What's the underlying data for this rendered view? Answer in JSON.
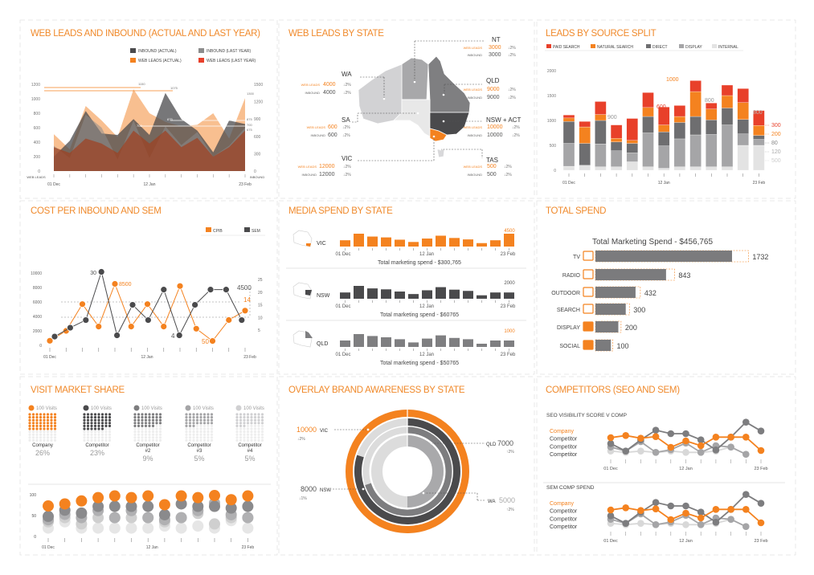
{
  "colors": {
    "orange": "#f4821f",
    "red": "#e8402a",
    "dark": "#4a4a4c",
    "mid": "#7d7d7f",
    "gray": "#a5a5a7",
    "light": "#d5d5d7",
    "lighter": "#ebebeb"
  },
  "panel_titles": [
    "WEB LEADS AND INBOUND (ACTUAL AND LAST YEAR)",
    "WEB LEADS BY STATE",
    "LEADS BY SOURCE SPLIT",
    "COST PER INBOUND AND SEM",
    "MEDIA SPEND BY STATE",
    "TOTAL SPEND",
    "VISIT MARKET SHARE",
    "OVERLAY BRAND AWARENESS BY STATE",
    "COMPETITORS (SEO AND SEM)"
  ],
  "chart_data": [
    {
      "type": "area",
      "title": "WEB LEADS AND INBOUND (ACTUAL AND LAST YEAR)",
      "x_labels": [
        "01 Dec",
        "12 Jan",
        "23 Feb"
      ],
      "ylabel_left": "WEB LEADS",
      "ylabel_right": "INBOUND",
      "yticks_left": [
        0,
        200,
        400,
        600,
        800,
        1000,
        1200
      ],
      "yticks_right": [
        0,
        300,
        600,
        900,
        1200,
        1500
      ],
      "ylim": [
        0,
        1200
      ],
      "series": [
        {
          "name": "WEB LEADS (ACTUAL)",
          "color": "#f5a96b",
          "values": [
            510,
            300,
            900,
            700,
            470,
            1130,
            800,
            680,
            620,
            640,
            800,
            450,
            1010
          ]
        },
        {
          "name": "INBOUND (ACTUAL)",
          "color": "#4a4a4c",
          "values": [
            200,
            420,
            830,
            520,
            500,
            720,
            500,
            1080,
            720,
            560,
            260,
            700,
            650
          ]
        },
        {
          "name": "INBOUND (LAST YEAR)",
          "color": "#8c8c8c",
          "values": [
            350,
            180,
            780,
            600,
            160,
            700,
            180,
            620,
            360,
            540,
            200,
            350,
            600
          ]
        },
        {
          "name": "WEB LEADS (LAST YEAR)",
          "color": "#a0401f",
          "values": [
            330,
            250,
            450,
            380,
            250,
            560,
            380,
            560,
            330,
            460,
            200,
            330,
            560
          ]
        }
      ],
      "legend_order": [
        "INBOUND (ACTUAL)",
        "INBOUND (LAST YEAR)",
        "WEB LEADS (ACTUAL)",
        "WEB LEADS (LAST YEAR)"
      ],
      "legend_colors": [
        "#4a4a4c",
        "#8c8c8c",
        "#f4821f",
        "#e8402a"
      ],
      "annotations": [
        "1150",
        "1075",
        "700",
        "875",
        "1300",
        "875",
        "700",
        "675"
      ]
    },
    {
      "type": "map",
      "title": "WEB LEADS BY STATE",
      "row_labels": [
        "WEB LEADS",
        "INBOUND"
      ],
      "states": [
        {
          "name": "NT",
          "web_leads": "3000",
          "inbound": "3000",
          "web_change": "↓2%",
          "inbound_change": "↓2%",
          "color": "#a8a8aa"
        },
        {
          "name": "WA",
          "web_leads": "4000",
          "inbound": "4000",
          "web_change": "↓2%",
          "inbound_change": "↓2%",
          "color": "#d2d2d4"
        },
        {
          "name": "QLD",
          "web_leads": "9000",
          "inbound": "9000",
          "web_change": "↓2%",
          "inbound_change": "↓2%",
          "color": "#7f7f81"
        },
        {
          "name": "SA",
          "web_leads": "600",
          "inbound": "600",
          "web_change": "↓2%",
          "inbound_change": "↓2%",
          "color": "#e8e8e8"
        },
        {
          "name": "NSW + ACT",
          "web_leads": "10000",
          "inbound": "10000",
          "web_change": "↓2%",
          "inbound_change": "↓2%",
          "color": "#4a4a4c"
        },
        {
          "name": "VIC",
          "web_leads": "12000",
          "inbound": "12000",
          "web_change": "↓2%",
          "inbound_change": "↓2%",
          "color": "#f4821f"
        },
        {
          "name": "TAS",
          "web_leads": "500",
          "inbound": "500",
          "web_change": "↓2%",
          "inbound_change": "↓2%",
          "color": "#d8d8da"
        }
      ]
    },
    {
      "type": "bar",
      "stacked": true,
      "title": "LEADS BY SOURCE SPLIT",
      "x_labels": [
        "01 Dec",
        "12 Jan",
        "23 Feb"
      ],
      "yticks": [
        0,
        500,
        1000,
        1500,
        2000
      ],
      "ylim": [
        0,
        2000
      ],
      "series": [
        {
          "name": "INTERNAL",
          "color": "#e3e3e3",
          "values": [
            80,
            100,
            70,
            70,
            170,
            70,
            40,
            70,
            70,
            70,
            70,
            500,
            500
          ]
        },
        {
          "name": "DISPLAY",
          "color": "#a5a5a7",
          "values": [
            460,
            0,
            460,
            320,
            180,
            680,
            450,
            560,
            640,
            650,
            840,
            230,
            120
          ]
        },
        {
          "name": "DIRECT",
          "color": "#6e6e70",
          "values": [
            440,
            440,
            470,
            180,
            190,
            330,
            280,
            330,
            370,
            290,
            340,
            290,
            80
          ]
        },
        {
          "name": "NATURAL SEARCH",
          "color": "#f4821f",
          "values": [
            70,
            330,
            120,
            70,
            60,
            180,
            140,
            120,
            500,
            220,
            250,
            340,
            200
          ]
        },
        {
          "name": "PAID SEARCH",
          "color": "#e8402a",
          "values": [
            60,
            110,
            260,
            270,
            440,
            300,
            360,
            220,
            220,
            120,
            210,
            280,
            300
          ]
        }
      ],
      "legend_order": [
        "PAID SEARCH",
        "NATURAL SEARCH",
        "DIRECT",
        "DISPLAY",
        "INTERNAL"
      ],
      "annotations": [
        "900",
        "600",
        "1000",
        "800",
        "800",
        "300",
        "200",
        "80",
        "120",
        "500"
      ]
    },
    {
      "type": "line",
      "title": "COST PER INBOUND AND SEM",
      "x_labels": [
        "01 Dec",
        "12 Jan",
        "23 Feb"
      ],
      "yticks_left": [
        0,
        2000,
        4000,
        6000,
        8000,
        10000
      ],
      "yticks_right": [
        5,
        10,
        15,
        20,
        25
      ],
      "series": [
        {
          "name": "CPIB",
          "axis": "left",
          "color": "#f4821f",
          "values": [
            630,
            2000,
            5700,
            2600,
            8500,
            2600,
            5700,
            2600,
            8200,
            2300,
            600,
            3500,
            4800
          ]
        },
        {
          "name": "SEM",
          "axis": "right",
          "color": "#4a4a4c",
          "values": [
            2.5,
            6,
            9,
            28,
            3,
            15,
            9,
            21,
            3,
            15,
            21,
            21,
            9
          ]
        }
      ],
      "annotations": [
        "30",
        "8500",
        "4",
        "50",
        "4500",
        "14"
      ]
    },
    {
      "type": "bar",
      "title": "MEDIA SPEND BY STATE",
      "x_labels": [
        "01 Dec",
        "12 Jan",
        "23 Feb"
      ],
      "charts": [
        {
          "state": "VIC",
          "color": "#f4821f",
          "label_color": "#f4821f",
          "last_label": "4500",
          "total": "Total marketing spend - $300,765",
          "values": [
            2200,
            4500,
            3500,
            3200,
            2400,
            1600,
            2800,
            3800,
            3000,
            2500,
            1200,
            2200,
            4500
          ]
        },
        {
          "state": "NSW",
          "color": "#4a4a4c",
          "label_color": "#555555",
          "last_label": "2000",
          "total": "Total marketing spend - $60765",
          "values": [
            2000,
            4100,
            3300,
            3000,
            2300,
            1500,
            2700,
            3700,
            2900,
            2500,
            1100,
            2000,
            2000
          ]
        },
        {
          "state": "QLD",
          "color": "#7f7f81",
          "label_color": "#f4821f",
          "last_label": "1000",
          "total": "Total marketing spend - $50765",
          "values": [
            1000,
            2000,
            1700,
            1500,
            1200,
            700,
            1300,
            1800,
            1400,
            1200,
            500,
            1000,
            1000
          ]
        }
      ]
    },
    {
      "type": "bar",
      "orientation": "horizontal",
      "title": "Total Marketing Spend - $456,765",
      "categories": [
        "TV",
        "RADIO",
        "OUTDOOR",
        "SEARCH",
        "DISPLAY",
        "SOCIAL"
      ],
      "icons": [
        "tv-icon",
        "radio-icon",
        "billboard-icon",
        "search-icon",
        "display-icon",
        "social-icon"
      ],
      "values": [
        1732,
        843,
        432,
        300,
        200,
        100
      ]
    },
    {
      "type": "waffle",
      "title": "VISIT MARKET SHARE",
      "unit_label": "100 Visits",
      "items": [
        {
          "name": "Company",
          "pct": "26%",
          "color": "#f4821f",
          "fill_dots": 48
        },
        {
          "name": "Competitor",
          "pct": "23%",
          "color": "#4a4a4c",
          "fill_dots": 46
        },
        {
          "name": "Competitor\n#2",
          "pct": "9%",
          "color": "#7d7d7f",
          "fill_dots": 38
        },
        {
          "name": "Competitor\n#3",
          "pct": "5%",
          "color": "#a5a5a7",
          "fill_dots": 35
        },
        {
          "name": "Competitor\n#4",
          "pct": "5%",
          "color": "#d0d0d2",
          "fill_dots": 35
        }
      ]
    },
    {
      "type": "scatter",
      "title": "VISIT MARKET SHARE (trend)",
      "x_labels": [
        "01 Dec",
        "12 Jan",
        "23 Feb"
      ],
      "yticks": [
        0,
        50,
        100
      ],
      "ylim": [
        0,
        100
      ],
      "series": [
        {
          "name": "Competitor #4",
          "color": "#e6e6e6",
          "values": [
            20,
            35,
            20,
            20,
            20,
            20,
            20,
            25,
            20,
            25,
            20,
            38,
            20
          ]
        },
        {
          "name": "Competitor #3",
          "color": "#cfcfcf",
          "values": [
            35,
            45,
            30,
            45,
            45,
            45,
            45,
            35,
            45,
            55,
            30,
            45,
            45
          ]
        },
        {
          "name": "Competitor #2",
          "color": "#b0b0b2",
          "values": [
            40,
            53,
            45,
            62,
            45,
            62,
            45,
            40,
            45,
            62,
            80,
            52,
            45
          ]
        },
        {
          "name": "Competitor",
          "color": "#8a8a8c",
          "values": [
            48,
            63,
            56,
            72,
            72,
            72,
            72,
            52,
            78,
            72,
            72,
            68,
            72
          ]
        },
        {
          "name": "Company",
          "color": "#f4821f",
          "values": [
            73,
            78,
            85,
            93,
            97,
            93,
            97,
            76,
            97,
            93,
            98,
            88,
            97
          ]
        }
      ]
    },
    {
      "type": "pie",
      "title": "OVERLAY BRAND AWARENESS BY STATE",
      "max": 10000,
      "rings": [
        {
          "state": "VIC",
          "value": 10000,
          "label": "10000",
          "change": "↓2%",
          "color": "#f4821f"
        },
        {
          "state": "NSW",
          "value": 8000,
          "label": "8000",
          "change": "↓1%",
          "color": "#4a4a4c"
        },
        {
          "state": "QLD",
          "value": 7000,
          "label": "7000",
          "change": "↑2%",
          "color": "#7d7d7f"
        },
        {
          "state": "WA",
          "value": 5000,
          "label": "5000",
          "change": "↑2%",
          "color": "#a9a9ab"
        }
      ]
    },
    {
      "type": "line",
      "title": "COMPETITORS (SEO AND SEM)",
      "x_labels": [
        "01 Dec",
        "12 Jan",
        "23 Feb"
      ],
      "charts": [
        {
          "subtitle": "SEO VISIBILITY SCORE V COMP",
          "series": [
            {
              "name": "Competitor",
              "color": "#d8d8d8",
              "values": [
                20,
                15,
                20,
                15,
                20,
                15,
                15,
                20,
                35,
                null,
                null
              ]
            },
            {
              "name": "Competitor",
              "color": "#a5a5a7",
              "values": [
                35,
                20,
                55,
                15,
                25,
                50,
                15,
                40,
                35,
                8,
                null
              ]
            },
            {
              "name": "Competitor",
              "color": "#7d7d7f",
              "values": [
                48,
                20,
                62,
                98,
                85,
                85,
                62,
                24,
                72,
                128,
                95
              ]
            },
            {
              "name": "Company",
              "color": "#f4821f",
              "values": [
                70,
                78,
                68,
                74,
                34,
                58,
                40,
                72,
                72,
                72,
                22
              ]
            }
          ]
        },
        {
          "subtitle": "SEM COMP SPEND",
          "series": [
            {
              "name": "Competitor",
              "color": "#d8d8d8",
              "values": [
                20,
                15,
                20,
                15,
                20,
                15,
                15,
                20,
                35,
                null,
                null
              ]
            },
            {
              "name": "Competitor",
              "color": "#a5a5a7",
              "values": [
                35,
                20,
                55,
                15,
                25,
                50,
                15,
                40,
                35,
                8,
                null
              ]
            },
            {
              "name": "Competitor",
              "color": "#7d7d7f",
              "values": [
                48,
                20,
                62,
                98,
                85,
                85,
                62,
                24,
                72,
                128,
                95
              ]
            },
            {
              "name": "Company",
              "color": "#f4821f",
              "values": [
                70,
                78,
                68,
                74,
                34,
                58,
                40,
                72,
                72,
                72,
                22
              ]
            }
          ]
        }
      ],
      "legend_names": [
        "Company",
        "Competitor",
        "Competitor",
        "Competitor"
      ]
    }
  ]
}
